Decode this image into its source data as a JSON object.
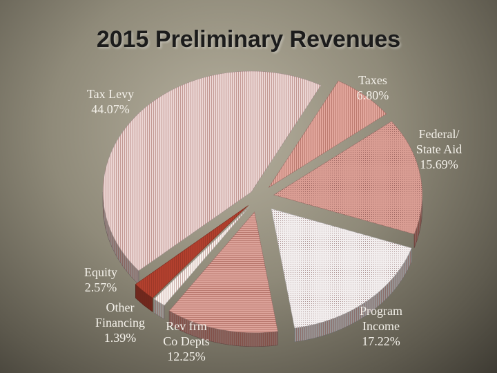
{
  "slide": {
    "title": "2015 Preliminary Revenues"
  },
  "chart_data": {
    "type": "pie",
    "title": "2015 Preliminary Revenues",
    "style": "3d-exploded",
    "slices": [
      {
        "label_lines": [
          "Taxes"
        ],
        "value": 6.8,
        "value_text": "6.80%",
        "color": "#e2a79d"
      },
      {
        "label_lines": [
          "Federal/",
          "State Aid"
        ],
        "value": 15.69,
        "value_text": "15.69%",
        "color": "#d99d93"
      },
      {
        "label_lines": [
          "Program",
          "Income"
        ],
        "value": 17.22,
        "value_text": "17.22%",
        "color": "#f2eeee"
      },
      {
        "label_lines": [
          "Rev frm",
          "Co Depts"
        ],
        "value": 12.25,
        "value_text": "12.25%",
        "color": "#dca39a"
      },
      {
        "label_lines": [
          "Other",
          "Financing"
        ],
        "value": 1.39,
        "value_text": "1.39%",
        "color": "#f7f3ef"
      },
      {
        "label_lines": [
          "Equity"
        ],
        "value": 2.57,
        "value_text": "2.57%",
        "color": "#b2402e"
      },
      {
        "label_lines": [
          "Tax Levy"
        ],
        "value": 44.07,
        "value_text": "44.07%",
        "color": "#ebd6d4"
      }
    ]
  }
}
